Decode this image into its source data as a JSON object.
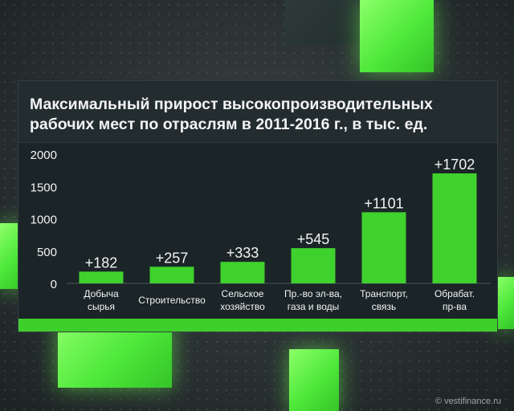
{
  "chart_data": {
    "type": "bar",
    "title": "Максимальный прирост высокопроизводительных рабочих мест по отраслям в 2011-2016 г., в тыс. ед.",
    "categories": [
      [
        "Добыча",
        "сырья"
      ],
      [
        "Строительство"
      ],
      [
        "Сельское",
        "хозяйство"
      ],
      [
        "Пр.-во эл-ва,",
        "газа и воды"
      ],
      [
        "Транспорт,",
        "связь"
      ],
      [
        "Обрабат.",
        "пр-ва"
      ]
    ],
    "values": [
      182,
      257,
      333,
      545,
      1101,
      1702
    ],
    "value_labels": [
      "+182",
      "+257",
      "+333",
      "+545",
      "+1101",
      "+1702"
    ],
    "yticks": [
      "2000",
      "1500",
      "1000",
      "500",
      "0"
    ],
    "ylim": [
      0,
      2000
    ],
    "grid": false,
    "bar_color": "#3fd12d"
  },
  "watermark": "© vestifinance.ru"
}
